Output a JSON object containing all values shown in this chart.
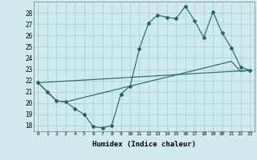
{
  "xlabel": "Humidex (Indice chaleur)",
  "bg_color": "#ceeaea",
  "grid_color": "#a8d0d0",
  "line_color": "#1a6b5a",
  "xlim": [
    -0.5,
    23.5
  ],
  "ylim": [
    17.5,
    29.0
  ],
  "xticks": [
    0,
    1,
    2,
    3,
    4,
    5,
    6,
    7,
    8,
    9,
    10,
    11,
    12,
    13,
    14,
    15,
    16,
    17,
    18,
    19,
    20,
    21,
    22,
    23
  ],
  "yticks": [
    18,
    19,
    20,
    21,
    22,
    23,
    24,
    25,
    26,
    27,
    28
  ],
  "series1_x": [
    0,
    1,
    2,
    3,
    4,
    5,
    6,
    7,
    8,
    9,
    10,
    11,
    12,
    13,
    14,
    15,
    16,
    17,
    18,
    19,
    20,
    21,
    22,
    23
  ],
  "series1_y": [
    21.8,
    21.0,
    20.2,
    20.1,
    19.5,
    19.0,
    17.9,
    17.8,
    18.0,
    20.8,
    21.5,
    24.8,
    27.1,
    27.8,
    27.6,
    27.5,
    28.6,
    27.3,
    25.8,
    28.1,
    26.2,
    24.9,
    23.2,
    22.9
  ],
  "series2_x": [
    0,
    1,
    2,
    3,
    4,
    5,
    6,
    7,
    8,
    9,
    10,
    11,
    12,
    13,
    14,
    15,
    16,
    17,
    18,
    19,
    20,
    21,
    22,
    23
  ],
  "series2_y": [
    21.8,
    21.0,
    20.2,
    20.1,
    20.3,
    20.5,
    20.7,
    20.9,
    21.1,
    21.3,
    21.5,
    21.7,
    21.9,
    22.1,
    22.3,
    22.5,
    22.7,
    22.9,
    23.1,
    23.3,
    23.5,
    23.7,
    22.8,
    22.9
  ],
  "series3_x": [
    0,
    23
  ],
  "series3_y": [
    21.8,
    22.9
  ]
}
